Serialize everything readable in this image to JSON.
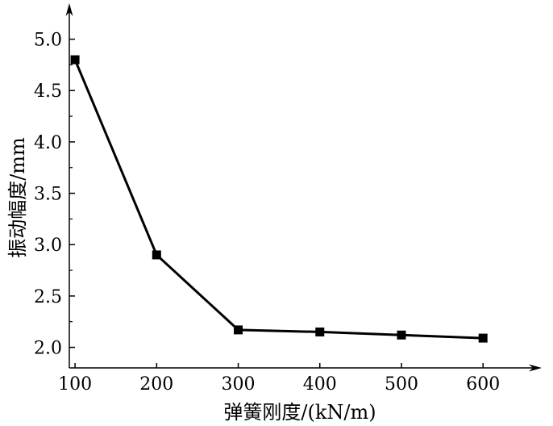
{
  "chart_data": {
    "type": "line",
    "xlabel": "弹簧刚度/(kN/m)",
    "ylabel": "振动幅度/mm",
    "x": [
      100,
      200,
      300,
      400,
      500,
      600
    ],
    "series": [
      {
        "values": [
          4.8,
          2.9,
          2.17,
          2.15,
          2.12,
          2.09
        ]
      }
    ],
    "xticks": [
      "100",
      "200",
      "300",
      "400",
      "500",
      "600"
    ],
    "yticks": [
      "2.0",
      "2.5",
      "3.0",
      "3.5",
      "4.0",
      "4.5",
      "5.0"
    ],
    "xlim": [
      93,
      665
    ],
    "ylim": [
      1.8,
      5.35
    ],
    "grid": false,
    "legend": "none",
    "marker": "square",
    "colors": {
      "line": "#000000",
      "marker": "#000000",
      "axis": "#000000"
    }
  }
}
